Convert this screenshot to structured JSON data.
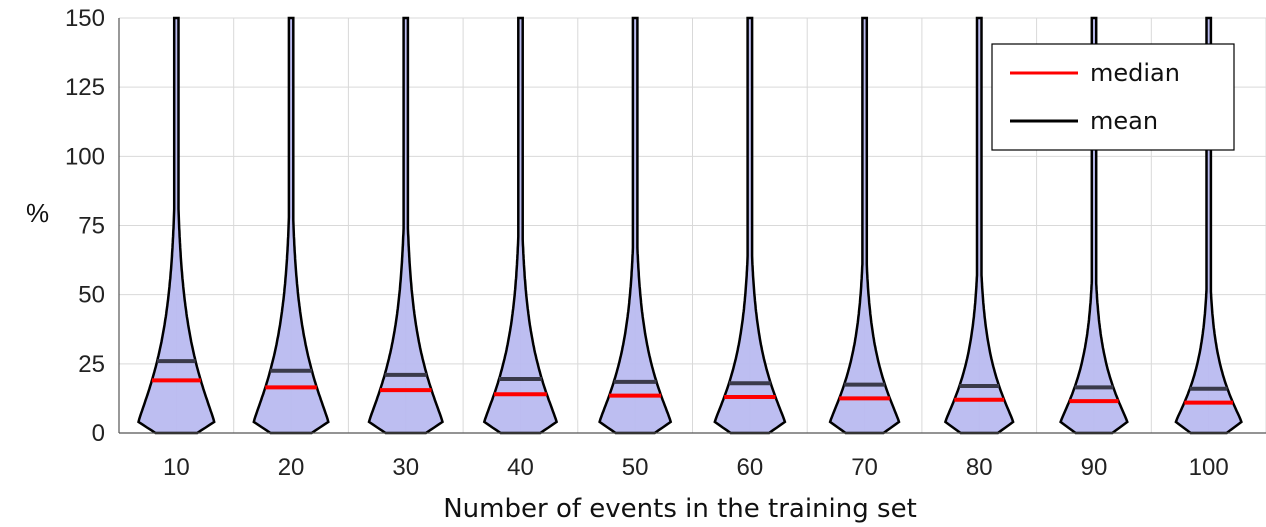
{
  "chart_data": {
    "type": "violin",
    "xlabel": "Number of events in the training set",
    "ylabel": "%",
    "ylim": [
      0,
      150
    ],
    "yticks": [
      0,
      25,
      50,
      75,
      100,
      125,
      150
    ],
    "categories": [
      "10",
      "20",
      "30",
      "40",
      "50",
      "60",
      "70",
      "80",
      "90",
      "100"
    ],
    "median": [
      19,
      16.5,
      15.5,
      14,
      13.5,
      13,
      12.5,
      12,
      11.5,
      11
    ],
    "mean": [
      26,
      22.5,
      21,
      19.5,
      18.5,
      18,
      17.5,
      17,
      16.5,
      16
    ],
    "grid": true,
    "legend": {
      "position": "top-right",
      "entries": [
        {
          "label": "median",
          "color": "#ff0000"
        },
        {
          "label": "mean",
          "color": "#000000"
        }
      ]
    },
    "colors": {
      "violin_fill": "#b9bbf0",
      "violin_edge": "#000000",
      "median_line": "#ff0000",
      "mean_line": "#3a3a4a"
    }
  }
}
